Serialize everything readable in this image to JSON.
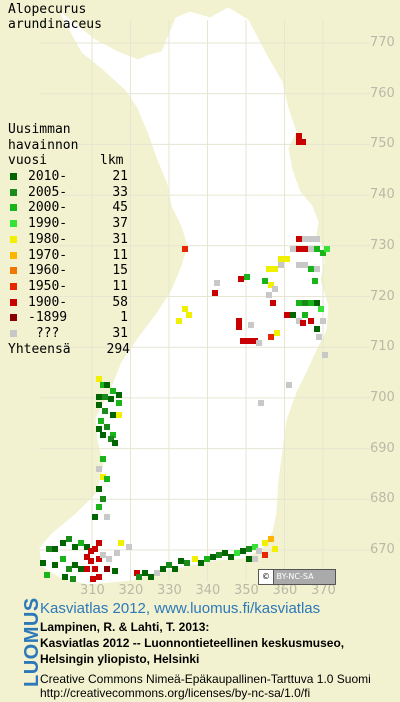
{
  "species": [
    "Alopecurus",
    "arundinaceus"
  ],
  "legend": {
    "title_lines": [
      "Uusimman",
      "havainnon"
    ],
    "col_year": "vuosi",
    "col_count": "lkm",
    "rows": [
      {
        "label": "2010-",
        "count": "21",
        "color": "#006400"
      },
      {
        "label": "2005-",
        "count": "33",
        "color": "#1a8a1a"
      },
      {
        "label": "2000-",
        "count": "45",
        "color": "#19b419"
      },
      {
        "label": "1990-",
        "count": "37",
        "color": "#36e236"
      },
      {
        "label": "1980-",
        "count": "31",
        "color": "#f0f000"
      },
      {
        "label": "1970-",
        "count": "11",
        "color": "#ffb400"
      },
      {
        "label": "1960-",
        "count": "15",
        "color": "#f07800"
      },
      {
        "label": "1950-",
        "count": "11",
        "color": "#e62800"
      },
      {
        "label": "1900-",
        "count": "58",
        "color": "#c80000"
      },
      {
        "label": "-1899",
        "count": "1",
        "color": "#8a0000"
      },
      {
        "label": " ???",
        "count": "31",
        "color": "#c8c8c8"
      }
    ],
    "total_label": "Yhteensä",
    "total_count": "294"
  },
  "grid": {
    "x_ticks": [
      "310",
      "320",
      "330",
      "340",
      "350",
      "360",
      "370"
    ],
    "y_ticks": [
      "770",
      "760",
      "750",
      "740",
      "730",
      "720",
      "710",
      "700",
      "690",
      "680",
      "670"
    ]
  },
  "cc_badge": "BY-NC-SA",
  "credits": {
    "brand": "LUOMUS",
    "atlas_title": "Kasviatlas 2012, www.luomus.fi/kasviatlas",
    "citation": [
      "Lampinen, R. & Lahti, T. 2013:",
      "Kasviatlas 2012 -- Luonnontieteellinen keskusmuseo,",
      "Helsingin yliopisto, Helsinki"
    ],
    "license": "Creative Commons Nimeä-Epäkaupallinen-Tarttuva 1.0 Suomi",
    "license_url": "http://creativecommons.org/licenses/by-nc-sa/1.0/fi"
  },
  "colors": {
    "background": "#f2f2d0",
    "land": "#ffffff",
    "grid": "#e6e6d2",
    "tick": "#b9b9a8",
    "brand": "#2d78b8"
  }
}
